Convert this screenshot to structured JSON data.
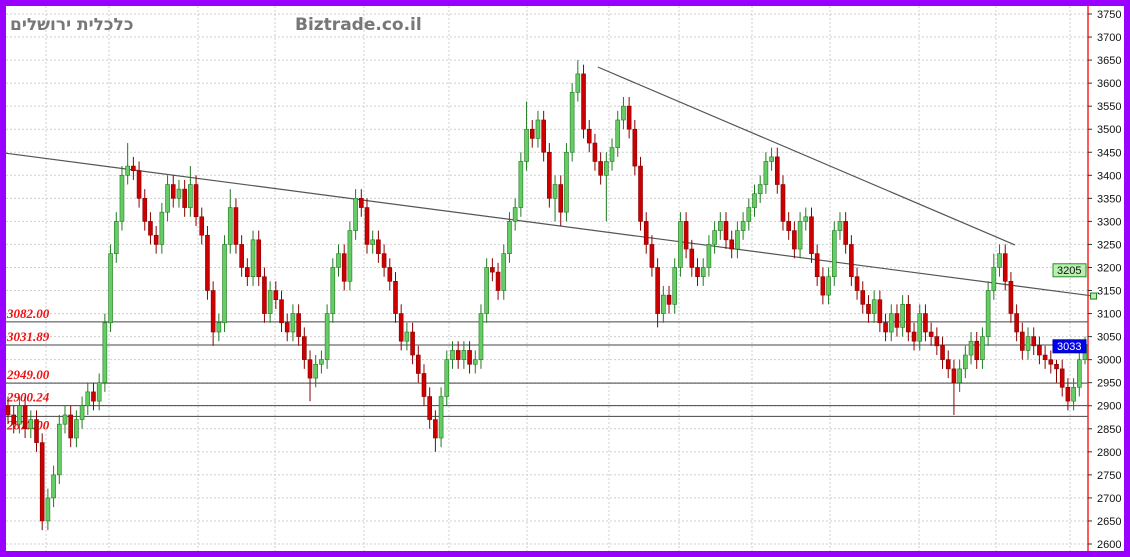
{
  "watermarks": {
    "hebrew": "כלכלית ירושלים",
    "site": "Biztrade.co.il"
  },
  "chart_data": {
    "type": "candlestick",
    "ylim": [
      2600,
      3750
    ],
    "yticks": [
      2600,
      2650,
      2700,
      2750,
      2800,
      2850,
      2900,
      2950,
      3000,
      3050,
      3100,
      3150,
      3200,
      3250,
      3300,
      3350,
      3400,
      3450,
      3500,
      3550,
      3600,
      3650,
      3700,
      3750
    ],
    "grid": true,
    "colors": {
      "up": "#66cc66",
      "up_border": "#1f7a1f",
      "down": "#cc0000",
      "down_border": "#880000",
      "frame": "#9900ff",
      "axis_line": "#ff2222"
    },
    "open": [
      2900,
      2880,
      2860,
      2900,
      2850,
      2870,
      2820,
      2650,
      2700,
      2750,
      2860,
      2880,
      2830,
      2870,
      2900,
      2930,
      2910,
      2950,
      3080,
      3230,
      3300,
      3400,
      3420,
      3410,
      3350,
      3300,
      3270,
      3250,
      3320,
      3380,
      3350,
      3370,
      3330,
      3380,
      3310,
      3270,
      3150,
      3060,
      3080,
      3250,
      3330,
      3250,
      3200,
      3180,
      3260,
      3180,
      3100,
      3150,
      3130,
      3080,
      3060,
      3100,
      3050,
      3000,
      2960,
      2990,
      3000,
      3100,
      3200,
      3230,
      3170,
      3280,
      3350,
      3330,
      3250,
      3260,
      3230,
      3200,
      3170,
      3100,
      3040,
      3060,
      3010,
      2970,
      2920,
      2870,
      2830,
      2920,
      3000,
      3020,
      3000,
      3020,
      2990,
      3000,
      3100,
      3200,
      3190,
      3150,
      3230,
      3300,
      3330,
      3430,
      3500,
      3480,
      3520,
      3450,
      3350,
      3380,
      3320,
      3450,
      3580,
      3620,
      3500,
      3470,
      3430,
      3400,
      3430,
      3460,
      3520,
      3550,
      3500,
      3420,
      3300,
      3250,
      3200,
      3100,
      3140,
      3120,
      3200,
      3300,
      3240,
      3200,
      3180,
      3200,
      3250,
      3280,
      3300,
      3260,
      3240,
      3280,
      3300,
      3330,
      3360,
      3380,
      3430,
      3440,
      3380,
      3300,
      3280,
      3240,
      3300,
      3310,
      3230,
      3180,
      3140,
      3180,
      3280,
      3300,
      3250,
      3180,
      3150,
      3120,
      3100,
      3130,
      3080,
      3060,
      3100,
      3070,
      3120,
      3060,
      3040,
      3100,
      3060,
      3050,
      3030,
      3000,
      2980,
      2950,
      2980,
      3010,
      3040,
      3000,
      3050,
      3150,
      3200,
      3230,
      3170,
      3100,
      3060,
      3020,
      3050,
      3030,
      3010,
      3000,
      2990,
      2980,
      2940,
      2910,
      2940,
      3000
    ],
    "high": [
      2920,
      2900,
      2920,
      2920,
      2890,
      2890,
      2840,
      2720,
      2770,
      2880,
      2900,
      2900,
      2890,
      2920,
      2950,
      2950,
      2970,
      3100,
      3250,
      3320,
      3420,
      3470,
      3440,
      3430,
      3370,
      3320,
      3290,
      3340,
      3400,
      3400,
      3390,
      3390,
      3420,
      3400,
      3330,
      3290,
      3170,
      3100,
      3270,
      3370,
      3350,
      3270,
      3220,
      3280,
      3280,
      3200,
      3170,
      3170,
      3150,
      3100,
      3120,
      3120,
      3070,
      3020,
      3010,
      3020,
      3120,
      3220,
      3250,
      3250,
      3300,
      3370,
      3370,
      3350,
      3280,
      3280,
      3250,
      3220,
      3190,
      3120,
      3080,
      3080,
      3030,
      2990,
      2940,
      2890,
      2940,
      3020,
      3040,
      3040,
      3040,
      3040,
      3020,
      3120,
      3220,
      3220,
      3210,
      3250,
      3320,
      3350,
      3450,
      3560,
      3520,
      3540,
      3540,
      3470,
      3400,
      3400,
      3470,
      3600,
      3650,
      3640,
      3520,
      3490,
      3450,
      3450,
      3480,
      3540,
      3570,
      3570,
      3520,
      3440,
      3320,
      3270,
      3220,
      3160,
      3160,
      3220,
      3320,
      3320,
      3260,
      3220,
      3220,
      3270,
      3300,
      3320,
      3320,
      3280,
      3300,
      3320,
      3350,
      3380,
      3400,
      3450,
      3460,
      3460,
      3400,
      3320,
      3300,
      3320,
      3330,
      3330,
      3250,
      3200,
      3200,
      3300,
      3320,
      3320,
      3270,
      3200,
      3170,
      3140,
      3150,
      3150,
      3100,
      3120,
      3120,
      3140,
      3140,
      3080,
      3120,
      3120,
      3080,
      3070,
      3050,
      3020,
      3000,
      3000,
      3030,
      3060,
      3060,
      3070,
      3170,
      3230,
      3250,
      3250,
      3190,
      3120,
      3080,
      3070,
      3070,
      3050,
      3030,
      3020,
      3000,
      3000,
      2960,
      2960,
      3020,
      3050
    ],
    "low": [
      2860,
      2840,
      2840,
      2830,
      2830,
      2800,
      2630,
      2630,
      2680,
      2730,
      2840,
      2810,
      2810,
      2850,
      2880,
      2890,
      2890,
      2930,
      3060,
      3210,
      3280,
      3380,
      3390,
      3330,
      3280,
      3250,
      3230,
      3230,
      3300,
      3330,
      3330,
      3310,
      3310,
      3290,
      3250,
      3130,
      3030,
      3040,
      3060,
      3230,
      3230,
      3180,
      3160,
      3160,
      3160,
      3080,
      3080,
      3110,
      3060,
      3040,
      3040,
      3030,
      2980,
      2910,
      2940,
      2970,
      2980,
      3080,
      3180,
      3150,
      3150,
      3260,
      3310,
      3230,
      3230,
      3210,
      3180,
      3150,
      3080,
      3020,
      3020,
      2990,
      2950,
      2900,
      2850,
      2800,
      2810,
      2900,
      2980,
      2980,
      2980,
      2970,
      2970,
      2980,
      3080,
      3170,
      3130,
      3130,
      3210,
      3280,
      3310,
      3410,
      3460,
      3460,
      3430,
      3330,
      3300,
      3290,
      3300,
      3430,
      3560,
      3480,
      3450,
      3410,
      3380,
      3300,
      3410,
      3440,
      3500,
      3480,
      3400,
      3280,
      3230,
      3180,
      3070,
      3080,
      3100,
      3100,
      3180,
      3220,
      3180,
      3160,
      3160,
      3180,
      3230,
      3260,
      3240,
      3220,
      3220,
      3260,
      3280,
      3310,
      3340,
      3360,
      3410,
      3360,
      3280,
      3260,
      3220,
      3220,
      3280,
      3210,
      3160,
      3120,
      3120,
      3160,
      3260,
      3230,
      3160,
      3130,
      3100,
      3080,
      3080,
      3060,
      3040,
      3040,
      3050,
      3050,
      3040,
      3020,
      3020,
      3040,
      3030,
      3010,
      2980,
      2960,
      2880,
      2930,
      2960,
      2990,
      2980,
      2980,
      3030,
      3130,
      3180,
      3150,
      3080,
      3040,
      3000,
      3000,
      3010,
      2990,
      2980,
      2970,
      2950,
      2920,
      2890,
      2890,
      2920,
      2990
    ],
    "close": [
      2880,
      2860,
      2900,
      2850,
      2870,
      2820,
      2650,
      2700,
      2750,
      2860,
      2880,
      2830,
      2870,
      2900,
      2930,
      2910,
      2950,
      3080,
      3230,
      3300,
      3400,
      3420,
      3410,
      3350,
      3300,
      3270,
      3250,
      3320,
      3380,
      3350,
      3370,
      3330,
      3380,
      3310,
      3270,
      3150,
      3060,
      3080,
      3250,
      3330,
      3250,
      3200,
      3180,
      3260,
      3180,
      3100,
      3150,
      3130,
      3080,
      3060,
      3100,
      3050,
      3000,
      2960,
      2990,
      3000,
      3100,
      3200,
      3230,
      3170,
      3280,
      3350,
      3330,
      3250,
      3260,
      3230,
      3200,
      3170,
      3100,
      3040,
      3060,
      3010,
      2970,
      2920,
      2870,
      2830,
      2920,
      3000,
      3020,
      3000,
      3020,
      2990,
      3000,
      3100,
      3200,
      3190,
      3150,
      3230,
      3300,
      3330,
      3430,
      3500,
      3480,
      3520,
      3450,
      3350,
      3380,
      3320,
      3450,
      3580,
      3620,
      3500,
      3470,
      3430,
      3400,
      3430,
      3460,
      3520,
      3550,
      3500,
      3420,
      3300,
      3250,
      3200,
      3100,
      3140,
      3120,
      3200,
      3300,
      3240,
      3200,
      3180,
      3200,
      3250,
      3280,
      3300,
      3260,
      3240,
      3280,
      3300,
      3330,
      3360,
      3380,
      3430,
      3440,
      3380,
      3300,
      3280,
      3240,
      3300,
      3310,
      3230,
      3180,
      3140,
      3180,
      3280,
      3300,
      3250,
      3180,
      3150,
      3120,
      3100,
      3130,
      3080,
      3060,
      3100,
      3070,
      3120,
      3060,
      3040,
      3100,
      3060,
      3050,
      3030,
      3000,
      2980,
      2950,
      2980,
      3010,
      3040,
      3000,
      3050,
      3150,
      3200,
      3230,
      3170,
      3100,
      3060,
      3020,
      3050,
      3030,
      3010,
      3000,
      2990,
      2980,
      2940,
      2910,
      2940,
      3000,
      3033
    ],
    "horizontal_levels": [
      {
        "value": 3082.0,
        "label": "3082.00"
      },
      {
        "value": 3031.89,
        "label": "3031.89"
      },
      {
        "value": 2949.0,
        "label": "2949.00"
      },
      {
        "value": 2900.24,
        "label": "2900.24"
      },
      {
        "value": 2877.0,
        "label": "2877.00"
      }
    ],
    "trendlines": [
      {
        "from": [
          0.6,
          3448
        ],
        "to": [
          191.5,
          3138
        ]
      },
      {
        "from": [
          104.5,
          3635
        ],
        "to": [
          177.7,
          3249
        ]
      }
    ],
    "price_markers": [
      {
        "label": "3205",
        "value": 3195,
        "color": "#b8f0b0"
      },
      {
        "label": "3033",
        "value": 3030,
        "color": "#0000ee"
      }
    ]
  }
}
